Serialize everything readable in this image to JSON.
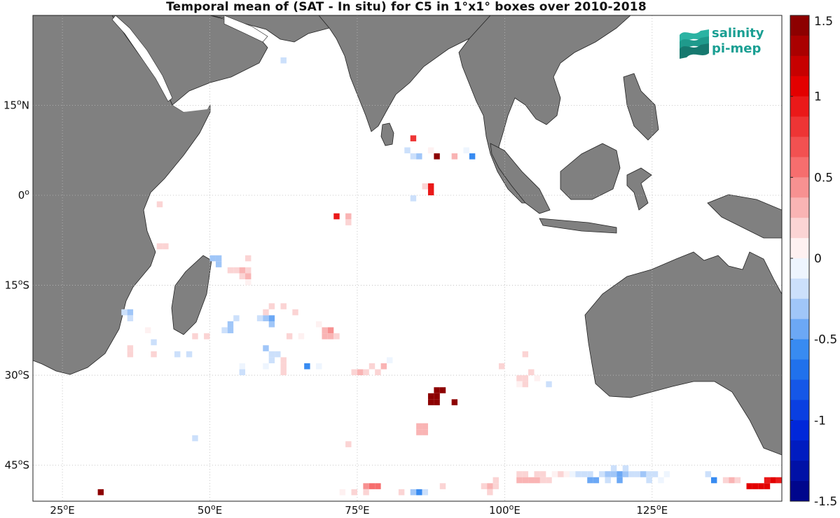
{
  "title": "Temporal mean of (SAT - In situ) for C5 in 1°x1° boxes over 2010-2018",
  "map": {
    "lon_range": [
      20,
      147
    ],
    "lat_range": [
      -51,
      30
    ],
    "x_ticks": [
      "25oE",
      "50oE",
      "75oE",
      "100oE",
      "125oE"
    ],
    "y_ticks": [
      "15oN",
      "0o",
      "15oS",
      "30oS",
      "45oS"
    ],
    "grid": "dotted",
    "land_color": "#808080",
    "ocean_color": "#ffffff"
  },
  "colorbar": {
    "range": [
      -1.5,
      1.5
    ],
    "steps": 24,
    "tick_labels": [
      "1.5",
      "1",
      "0.5",
      "0",
      "-0.5",
      "-1",
      "-1.5"
    ],
    "low_color": "#00007f",
    "high_color": "#7f0000"
  },
  "logo": {
    "line1": "salinity",
    "line2": "pi-mep",
    "color": "#1a9f93"
  },
  "cells": [
    {
      "lon": 62.5,
      "lat": 22.5,
      "v": -0.15
    },
    {
      "lon": 84.5,
      "lat": 9.5,
      "v": 0.8
    },
    {
      "lon": 83.5,
      "lat": 7.5,
      "v": -0.2
    },
    {
      "lon": 84.5,
      "lat": 6.5,
      "v": -0.25
    },
    {
      "lon": 85.5,
      "lat": 6.5,
      "v": -0.3
    },
    {
      "lon": 87.5,
      "lat": 7.5,
      "v": 0.1
    },
    {
      "lon": 88.5,
      "lat": 6.5,
      "v": 1.45
    },
    {
      "lon": 91.5,
      "lat": 6.5,
      "v": 0.3
    },
    {
      "lon": 93.5,
      "lat": 7.5,
      "v": -0.1
    },
    {
      "lon": 94.5,
      "lat": 6.5,
      "v": -0.6
    },
    {
      "lon": 86.5,
      "lat": 1.5,
      "v": 0.2
    },
    {
      "lon": 87.5,
      "lat": 1.5,
      "v": 0.9
    },
    {
      "lon": 87.5,
      "lat": 0.5,
      "v": 0.9
    },
    {
      "lon": 84.5,
      "lat": -0.5,
      "v": -0.15
    },
    {
      "lon": 71.5,
      "lat": -3.5,
      "v": 0.9
    },
    {
      "lon": 73.5,
      "lat": -3.5,
      "v": 0.25
    },
    {
      "lon": 73.5,
      "lat": -4.5,
      "v": 0.2
    },
    {
      "lon": 41.5,
      "lat": -1.5,
      "v": 0.15
    },
    {
      "lon": 41.5,
      "lat": -8.5,
      "v": 0.2
    },
    {
      "lon": 42.5,
      "lat": -8.5,
      "v": 0.2
    },
    {
      "lon": 50.5,
      "lat": -10.5,
      "v": -0.3
    },
    {
      "lon": 51.5,
      "lat": -10.5,
      "v": -0.3
    },
    {
      "lon": 51.5,
      "lat": -11.5,
      "v": -0.3
    },
    {
      "lon": 56.5,
      "lat": -10.5,
      "v": 0.2
    },
    {
      "lon": 53.5,
      "lat": -12.5,
      "v": 0.15
    },
    {
      "lon": 54.5,
      "lat": -12.5,
      "v": 0.2
    },
    {
      "lon": 55.5,
      "lat": -12.5,
      "v": 0.25
    },
    {
      "lon": 56.5,
      "lat": -12.5,
      "v": 0.2
    },
    {
      "lon": 55.5,
      "lat": -13.5,
      "v": 0.2
    },
    {
      "lon": 56.5,
      "lat": -13.5,
      "v": 0.25
    },
    {
      "lon": 56.5,
      "lat": -14.5,
      "v": 0.1
    },
    {
      "lon": 35.5,
      "lat": -19.5,
      "v": -0.25
    },
    {
      "lon": 36.5,
      "lat": -19.5,
      "v": -0.3
    },
    {
      "lon": 36.5,
      "lat": -20.5,
      "v": -0.15
    },
    {
      "lon": 39.5,
      "lat": -22.5,
      "v": 0.1
    },
    {
      "lon": 40.5,
      "lat": -24.5,
      "v": -0.2
    },
    {
      "lon": 36.5,
      "lat": -25.5,
      "v": 0.2
    },
    {
      "lon": 36.5,
      "lat": -26.5,
      "v": 0.2
    },
    {
      "lon": 40.5,
      "lat": -26.5,
      "v": 0.15
    },
    {
      "lon": 44.5,
      "lat": -26.5,
      "v": -0.15
    },
    {
      "lon": 46.5,
      "lat": -26.5,
      "v": -0.2
    },
    {
      "lon": 47.5,
      "lat": -23.5,
      "v": 0.2
    },
    {
      "lon": 49.5,
      "lat": -23.5,
      "v": 0.2
    },
    {
      "lon": 52.5,
      "lat": -22.5,
      "v": -0.25
    },
    {
      "lon": 53.5,
      "lat": -22.5,
      "v": -0.3
    },
    {
      "lon": 53.5,
      "lat": -21.5,
      "v": -0.3
    },
    {
      "lon": 54.5,
      "lat": -20.5,
      "v": -0.2
    },
    {
      "lon": 58.5,
      "lat": -20.5,
      "v": -0.2
    },
    {
      "lon": 59.5,
      "lat": -20.5,
      "v": -0.3
    },
    {
      "lon": 60.5,
      "lat": -20.5,
      "v": -0.4
    },
    {
      "lon": 60.5,
      "lat": -21.5,
      "v": -0.3
    },
    {
      "lon": 59.5,
      "lat": -19.5,
      "v": 0.15
    },
    {
      "lon": 60.5,
      "lat": -18.5,
      "v": 0.15
    },
    {
      "lon": 62.5,
      "lat": -18.5,
      "v": 0.2
    },
    {
      "lon": 64.5,
      "lat": -19.5,
      "v": 0.2
    },
    {
      "lon": 63.5,
      "lat": -23.5,
      "v": 0.2
    },
    {
      "lon": 65.5,
      "lat": -23.5,
      "v": 0.1
    },
    {
      "lon": 69.5,
      "lat": -22.5,
      "v": 0.35
    },
    {
      "lon": 70.5,
      "lat": -22.5,
      "v": 0.4
    },
    {
      "lon": 69.5,
      "lat": -23.5,
      "v": 0.3
    },
    {
      "lon": 70.5,
      "lat": -23.5,
      "v": 0.25
    },
    {
      "lon": 71.5,
      "lat": -23.5,
      "v": 0.2
    },
    {
      "lon": 68.5,
      "lat": -21.5,
      "v": 0.1
    },
    {
      "lon": 59.5,
      "lat": -25.5,
      "v": -0.3
    },
    {
      "lon": 60.5,
      "lat": -26.5,
      "v": -0.2
    },
    {
      "lon": 61.5,
      "lat": -26.5,
      "v": -0.15
    },
    {
      "lon": 60.5,
      "lat": -27.5,
      "v": -0.2
    },
    {
      "lon": 59.5,
      "lat": -28.5,
      "v": -0.1
    },
    {
      "lon": 62.5,
      "lat": -27.5,
      "v": 0.15
    },
    {
      "lon": 62.5,
      "lat": -28.5,
      "v": 0.2
    },
    {
      "lon": 62.5,
      "lat": -29.5,
      "v": 0.2
    },
    {
      "lon": 55.5,
      "lat": -28.5,
      "v": -0.1
    },
    {
      "lon": 55.5,
      "lat": -29.5,
      "v": -0.15
    },
    {
      "lon": 66.5,
      "lat": -28.5,
      "v": -0.6
    },
    {
      "lon": 68.5,
      "lat": -28.5,
      "v": -0.1
    },
    {
      "lon": 74.5,
      "lat": -29.5,
      "v": 0.2
    },
    {
      "lon": 75.5,
      "lat": -29.5,
      "v": 0.25
    },
    {
      "lon": 76.5,
      "lat": -29.5,
      "v": 0.2
    },
    {
      "lon": 77.5,
      "lat": -28.5,
      "v": 0.15
    },
    {
      "lon": 78.5,
      "lat": -29.5,
      "v": 0.15
    },
    {
      "lon": 79.5,
      "lat": -28.5,
      "v": 0.25
    },
    {
      "lon": 80.5,
      "lat": -27.5,
      "v": -0.1
    },
    {
      "lon": 88.5,
      "lat": -32.5,
      "v": 1.45
    },
    {
      "lon": 89.5,
      "lat": -32.5,
      "v": 1.45
    },
    {
      "lon": 88.5,
      "lat": -33.5,
      "v": 1.45
    },
    {
      "lon": 87.5,
      "lat": -33.5,
      "v": 1.45
    },
    {
      "lon": 87.5,
      "lat": -34.5,
      "v": 1.45
    },
    {
      "lon": 88.5,
      "lat": -34.5,
      "v": 1.45
    },
    {
      "lon": 91.5,
      "lat": -34.5,
      "v": 1.45
    },
    {
      "lon": 85.5,
      "lat": -38.5,
      "v": 0.3
    },
    {
      "lon": 86.5,
      "lat": -38.5,
      "v": 0.35
    },
    {
      "lon": 85.5,
      "lat": -39.5,
      "v": 0.3
    },
    {
      "lon": 86.5,
      "lat": -39.5,
      "v": 0.3
    },
    {
      "lon": 73.5,
      "lat": -41.5,
      "v": 0.2
    },
    {
      "lon": 47.5,
      "lat": -40.5,
      "v": -0.2
    },
    {
      "lon": 99.5,
      "lat": -28.5,
      "v": 0.15
    },
    {
      "lon": 103.5,
      "lat": -26.5,
      "v": 0.15
    },
    {
      "lon": 102.5,
      "lat": -30.5,
      "v": 0.15
    },
    {
      "lon": 103.5,
      "lat": -30.5,
      "v": 0.2
    },
    {
      "lon": 104.5,
      "lat": -29.5,
      "v": 0.2
    },
    {
      "lon": 102.5,
      "lat": -31.5,
      "v": 0.1
    },
    {
      "lon": 103.5,
      "lat": -31.5,
      "v": 0.15
    },
    {
      "lon": 105.5,
      "lat": -30.5,
      "v": 0.1
    },
    {
      "lon": 107.5,
      "lat": -31.5,
      "v": -0.2
    },
    {
      "lon": 31.5,
      "lat": -49.5,
      "v": 1.45
    },
    {
      "lon": 72.5,
      "lat": -49.5,
      "v": 0.1
    },
    {
      "lon": 74.5,
      "lat": -49.5,
      "v": 0.2
    },
    {
      "lon": 76.5,
      "lat": -48.5,
      "v": 0.4
    },
    {
      "lon": 77.5,
      "lat": -48.5,
      "v": 0.6
    },
    {
      "lon": 78.5,
      "lat": -48.5,
      "v": 0.5
    },
    {
      "lon": 76.5,
      "lat": -49.5,
      "v": 0.2
    },
    {
      "lon": 82.5,
      "lat": -49.5,
      "v": 0.15
    },
    {
      "lon": 84.5,
      "lat": -49.5,
      "v": -0.3
    },
    {
      "lon": 85.5,
      "lat": -49.5,
      "v": -0.6
    },
    {
      "lon": 86.5,
      "lat": -49.5,
      "v": -0.2
    },
    {
      "lon": 89.5,
      "lat": -48.5,
      "v": 0.2
    },
    {
      "lon": 96.5,
      "lat": -48.5,
      "v": 0.2
    },
    {
      "lon": 97.5,
      "lat": -48.5,
      "v": 0.25
    },
    {
      "lon": 98.5,
      "lat": -48.5,
      "v": 0.2
    },
    {
      "lon": 97.5,
      "lat": -49.5,
      "v": 0.15
    },
    {
      "lon": 98.5,
      "lat": -47.5,
      "v": 0.2
    },
    {
      "lon": 102.5,
      "lat": -46.5,
      "v": 0.2
    },
    {
      "lon": 103.5,
      "lat": -46.5,
      "v": 0.15
    },
    {
      "lon": 102.5,
      "lat": -47.5,
      "v": 0.25
    },
    {
      "lon": 103.5,
      "lat": -47.5,
      "v": 0.3
    },
    {
      "lon": 104.5,
      "lat": -47.5,
      "v": 0.25
    },
    {
      "lon": 105.5,
      "lat": -47.5,
      "v": 0.25
    },
    {
      "lon": 106.5,
      "lat": -47.5,
      "v": 0.2
    },
    {
      "lon": 107.5,
      "lat": -47.5,
      "v": 0.15
    },
    {
      "lon": 105.5,
      "lat": -46.5,
      "v": 0.2
    },
    {
      "lon": 106.5,
      "lat": -46.5,
      "v": 0.15
    },
    {
      "lon": 108.5,
      "lat": -46.5,
      "v": 0.1
    },
    {
      "lon": 109.5,
      "lat": -46.5,
      "v": 0.15
    },
    {
      "lon": 110.5,
      "lat": -46.5,
      "v": 0.1
    },
    {
      "lon": 111.5,
      "lat": -46.5,
      "v": -0.1
    },
    {
      "lon": 112.5,
      "lat": -46.5,
      "v": -0.15
    },
    {
      "lon": 113.5,
      "lat": -46.5,
      "v": -0.2
    },
    {
      "lon": 114.5,
      "lat": -46.5,
      "v": -0.25
    },
    {
      "lon": 114.5,
      "lat": -47.5,
      "v": -0.45
    },
    {
      "lon": 115.5,
      "lat": -47.5,
      "v": -0.4
    },
    {
      "lon": 116.5,
      "lat": -46.5,
      "v": -0.2
    },
    {
      "lon": 117.5,
      "lat": -46.5,
      "v": -0.3
    },
    {
      "lon": 117.5,
      "lat": -47.5,
      "v": -0.2
    },
    {
      "lon": 118.5,
      "lat": -45.5,
      "v": -0.2
    },
    {
      "lon": 118.5,
      "lat": -46.5,
      "v": -0.3
    },
    {
      "lon": 119.5,
      "lat": -46.5,
      "v": -0.45
    },
    {
      "lon": 119.5,
      "lat": -47.5,
      "v": -0.45
    },
    {
      "lon": 120.5,
      "lat": -46.5,
      "v": -0.35
    },
    {
      "lon": 120.5,
      "lat": -45.5,
      "v": -0.25
    },
    {
      "lon": 121.5,
      "lat": -46.5,
      "v": -0.2
    },
    {
      "lon": 122.5,
      "lat": -46.5,
      "v": -0.2
    },
    {
      "lon": 123.5,
      "lat": -46.5,
      "v": -0.3
    },
    {
      "lon": 124.5,
      "lat": -46.5,
      "v": -0.25
    },
    {
      "lon": 124.5,
      "lat": -47.5,
      "v": -0.2
    },
    {
      "lon": 125.5,
      "lat": -46.5,
      "v": -0.15
    },
    {
      "lon": 126.5,
      "lat": -47.5,
      "v": -0.1
    },
    {
      "lon": 127.5,
      "lat": -46.5,
      "v": -0.1
    },
    {
      "lon": 134.5,
      "lat": -46.5,
      "v": -0.2
    },
    {
      "lon": 135.5,
      "lat": -47.5,
      "v": -0.6
    },
    {
      "lon": 137.5,
      "lat": -47.5,
      "v": 0.2
    },
    {
      "lon": 138.5,
      "lat": -47.5,
      "v": 0.3
    },
    {
      "lon": 139.5,
      "lat": -47.5,
      "v": 0.2
    },
    {
      "lon": 141.5,
      "lat": -48.5,
      "v": 1.05
    },
    {
      "lon": 142.5,
      "lat": -48.5,
      "v": 1.05
    },
    {
      "lon": 143.5,
      "lat": -48.5,
      "v": 1.05
    },
    {
      "lon": 144.5,
      "lat": -48.5,
      "v": 1.05
    },
    {
      "lon": 145.5,
      "lat": -47.5,
      "v": 1.0
    },
    {
      "lon": 144.5,
      "lat": -47.5,
      "v": 0.9
    },
    {
      "lon": 146.5,
      "lat": -47.5,
      "v": 0.9
    }
  ]
}
